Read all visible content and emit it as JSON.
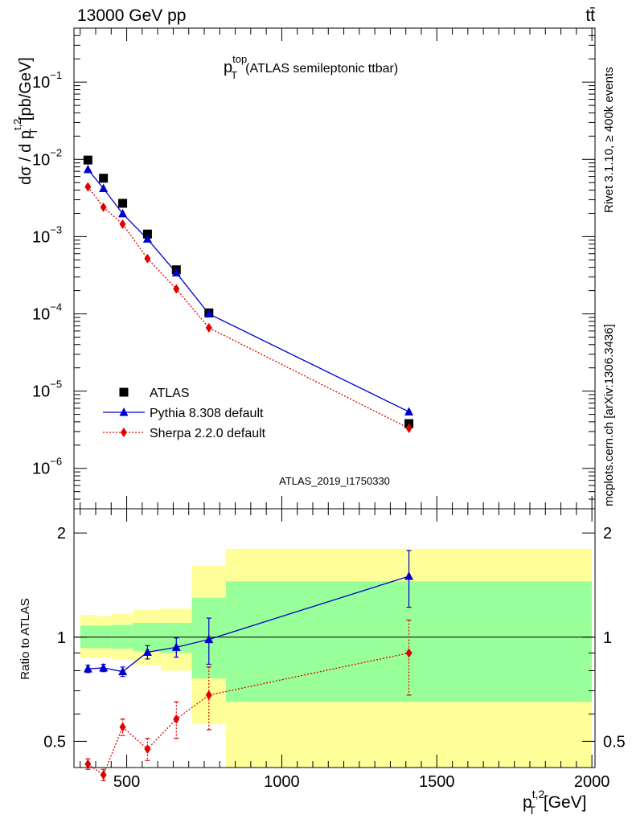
{
  "header": {
    "left": "13000 GeV pp",
    "right": "tt̄"
  },
  "side_text": {
    "upper": "Rivet 3.1.10, ≥ 400k events",
    "lower": "mcplots.cern.ch [arXiv:1306.3436]"
  },
  "watermark": "ATLAS_2019_I1750330",
  "colors": {
    "atlas": "#000000",
    "pythia": "#0000cc",
    "sherpa": "#e00000",
    "band_inner": "#99ff99",
    "band_outer": "#ffff99"
  },
  "chart_data": [
    {
      "type": "scatter",
      "title_main": "p",
      "title_sup": "top",
      "title_sub": "T",
      "title_rest": "(ATLAS semileptonic ttbar)",
      "ylabel": "dσ / d p_T^{t,2} [pb/GeV]",
      "yscale": "log",
      "ylim": [
        3e-07,
        0.5
      ],
      "xlim": [
        330,
        2010
      ],
      "y_ticks": [
        {
          "value": 1e-06,
          "base": "10",
          "exp": "−6"
        },
        {
          "value": 1e-05,
          "base": "10",
          "exp": "−5"
        },
        {
          "value": 0.0001,
          "base": "10",
          "exp": "−4"
        },
        {
          "value": 0.001,
          "base": "10",
          "exp": "−3"
        },
        {
          "value": 0.01,
          "base": "10",
          "exp": "−2"
        },
        {
          "value": 0.1,
          "base": "10",
          "exp": "−1"
        }
      ],
      "legend_position": "bottom-left",
      "series": [
        {
          "name": "ATLAS",
          "key": "atlas",
          "x": [
            375,
            425,
            487,
            567,
            660,
            765,
            1410
          ],
          "y": [
            0.0098,
            0.0057,
            0.0027,
            0.00108,
            0.000372,
            0.000103,
            3.8e-06
          ]
        },
        {
          "name": "Pythia 8.308 default",
          "key": "pythia",
          "x": [
            375,
            425,
            487,
            567,
            660,
            765,
            1410
          ],
          "y": [
            0.0074,
            0.0042,
            0.00198,
            0.00093,
            0.00034,
            0.0001,
            5.4e-06
          ]
        },
        {
          "name": "Sherpa 2.2.0 default",
          "key": "sherpa",
          "x": [
            375,
            425,
            487,
            567,
            660,
            765,
            1410
          ],
          "y": [
            0.0044,
            0.0024,
            0.00145,
            0.00052,
            0.00021,
            6.6e-05,
            3.3e-06
          ]
        }
      ]
    },
    {
      "type": "scatter",
      "ylabel": "Ratio to ATLAS",
      "xlabel_main": "p",
      "xlabel_sup": "t,2",
      "xlabel_sub": "T",
      "xlabel_unit": "[GeV]",
      "yscale": "log",
      "ylim": [
        0.42,
        2.35
      ],
      "xlim": [
        330,
        2010
      ],
      "x_ticks": [
        500,
        1000,
        1500,
        2000
      ],
      "y_ticks": [
        0.5,
        1,
        2
      ],
      "bins": [
        {
          "lo": 350,
          "hi": 400,
          "inner": [
            0.93,
            1.08
          ],
          "outer": [
            0.87,
            1.16
          ]
        },
        {
          "lo": 400,
          "hi": 450,
          "inner": [
            0.93,
            1.08
          ],
          "outer": [
            0.87,
            1.15
          ]
        },
        {
          "lo": 450,
          "hi": 520,
          "inner": [
            0.925,
            1.085
          ],
          "outer": [
            0.86,
            1.17
          ]
        },
        {
          "lo": 520,
          "hi": 610,
          "inner": [
            0.91,
            1.1
          ],
          "outer": [
            0.83,
            1.2
          ]
        },
        {
          "lo": 610,
          "hi": 710,
          "inner": [
            0.9,
            1.1
          ],
          "outer": [
            0.8,
            1.21
          ]
        },
        {
          "lo": 710,
          "hi": 820,
          "inner": [
            0.76,
            1.3
          ],
          "outer": [
            0.56,
            1.61
          ]
        },
        {
          "lo": 820,
          "hi": 2000,
          "inner": [
            0.65,
            1.45
          ],
          "outer": [
            0.4,
            1.8
          ]
        }
      ],
      "series": [
        {
          "name": "Pythia 8.308 default",
          "key": "pythia",
          "x": [
            375,
            425,
            487,
            567,
            660,
            765,
            1410
          ],
          "y": [
            0.81,
            0.815,
            0.795,
            0.905,
            0.935,
            0.985,
            1.5
          ],
          "yerr": [
            0.02,
            0.02,
            0.025,
            0.04,
            0.06,
            0.15,
            0.28
          ]
        },
        {
          "name": "Sherpa 2.2.0 default",
          "key": "sherpa",
          "x": [
            375,
            425,
            487,
            567,
            660,
            765,
            1410
          ],
          "y": [
            0.43,
            0.4,
            0.55,
            0.475,
            0.58,
            0.68,
            0.9
          ],
          "yerr": [
            0.015,
            0.015,
            0.03,
            0.035,
            0.07,
            0.14,
            0.22
          ]
        }
      ]
    }
  ]
}
